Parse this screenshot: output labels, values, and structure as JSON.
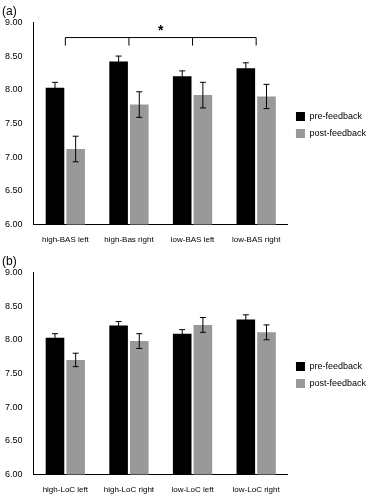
{
  "chart_data": [
    {
      "type": "bar",
      "title": "(a)",
      "categories": [
        "high-BAS left",
        "high-Bas right",
        "low-BAS left",
        "low-BAS right"
      ],
      "series": [
        {
          "name": "pre-feedback",
          "color": "#000000",
          "values": [
            8.03,
            8.42,
            8.2,
            8.32
          ],
          "errors": [
            0.08,
            0.08,
            0.08,
            0.08
          ]
        },
        {
          "name": "post-feedback",
          "color": "#999999",
          "values": [
            7.12,
            7.78,
            7.92,
            7.9
          ],
          "errors": [
            0.19,
            0.19,
            0.19,
            0.18
          ]
        }
      ],
      "ylim": [
        6,
        9
      ],
      "yticks": [
        {
          "value": 6,
          "label": "6.00"
        },
        {
          "value": 6.5,
          "label": "6.50"
        },
        {
          "value": 7,
          "label": "7.00"
        },
        {
          "value": 7.5,
          "label": "7.50"
        },
        {
          "value": 8,
          "label": "8.00"
        },
        {
          "value": 8.5,
          "label": "8.50"
        },
        {
          "value": 9,
          "label": "9.00"
        }
      ],
      "grid": false,
      "legend": "right",
      "annotations": [
        {
          "text": "*",
          "from": "high-BAS left",
          "to": "low-BAS right"
        }
      ]
    },
    {
      "type": "bar",
      "title": "(b)",
      "categories": [
        "high-LoC left",
        "high-LoC right",
        "low-LoC left",
        "low-LoC right"
      ],
      "series": [
        {
          "name": "pre-feedback",
          "color": "#000000",
          "values": [
            8.03,
            8.21,
            8.09,
            8.3
          ],
          "errors": [
            0.06,
            0.06,
            0.06,
            0.07
          ]
        },
        {
          "name": "post-feedback",
          "color": "#999999",
          "values": [
            7.7,
            7.98,
            8.22,
            8.11
          ],
          "errors": [
            0.1,
            0.11,
            0.11,
            0.11
          ]
        }
      ],
      "ylim": [
        6,
        9
      ],
      "yticks": [
        {
          "value": 6,
          "label": "6.00"
        },
        {
          "value": 6.5,
          "label": "6.50"
        },
        {
          "value": 7,
          "label": "7.00"
        },
        {
          "value": 7.5,
          "label": "7.50"
        },
        {
          "value": 8,
          "label": "8.00"
        },
        {
          "value": 8.5,
          "label": "8.50"
        },
        {
          "value": 9,
          "label": "9.00"
        }
      ],
      "grid": false,
      "legend": "right"
    }
  ]
}
